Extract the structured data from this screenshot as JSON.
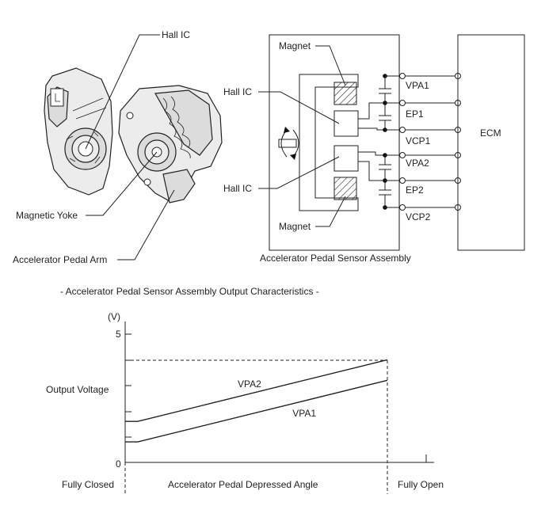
{
  "photo_labels": {
    "hall_ic": "Hall IC",
    "magnetic_yoke": "Magnetic Yoke",
    "pedal_arm": "Accelerator Pedal Arm"
  },
  "circuit": {
    "magnet_top": "Magnet",
    "magnet_bottom": "Magnet",
    "hall_ic_top": "Hall IC",
    "hall_ic_bottom": "Hall IC",
    "terminals": [
      "VPA1",
      "EP1",
      "VCP1",
      "VPA2",
      "EP2",
      "VCP2"
    ],
    "ecm": "ECM",
    "assembly_caption": "Accelerator Pedal Sensor Assembly"
  },
  "chart_data": {
    "type": "line",
    "title": "- Accelerator Pedal Sensor Assembly Output Characteristics -",
    "ylabel": "Output Voltage",
    "y_unit": "(V)",
    "y_ticks": [
      "5",
      "0"
    ],
    "xlabel": "Accelerator Pedal Depressed Angle",
    "x_start_label": "Fully Closed",
    "x_end_label": "Fully Open",
    "x": [
      0,
      1
    ],
    "ylim": [
      0,
      5
    ],
    "series": [
      {
        "name": "VPA2",
        "values": [
          1.6,
          4.0
        ]
      },
      {
        "name": "VPA1",
        "values": [
          0.8,
          3.2
        ]
      }
    ]
  }
}
